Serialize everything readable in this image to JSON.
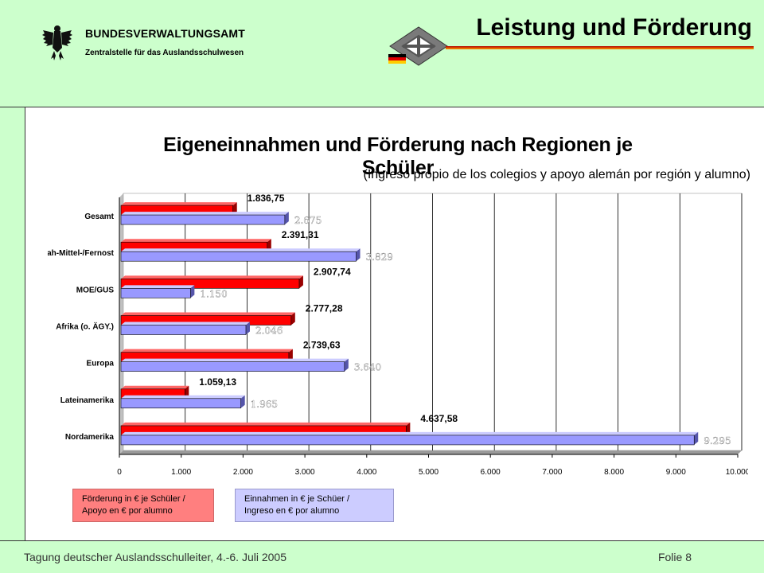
{
  "header": {
    "org_name": "BUNDESVERWALTUNGSAMT",
    "org_sub": "Zentralstelle für das Auslandsschulwesen",
    "slide_title": "Leistung und Förderung"
  },
  "footer": {
    "left": "Tagung deutscher Auslandsschulleiter, 4.-6. Juli 2005",
    "right": "Folie 8"
  },
  "colors": {
    "background": "#ccffcc",
    "foerderung": "#ff0000",
    "einnahmen": "#9999ff",
    "legend_red": "#ff7f7f",
    "legend_blue": "#ccccff"
  },
  "chart_data": {
    "type": "bar",
    "orientation": "horizontal",
    "title": "Eigeneinnahmen und Förderung nach Regionen je Schüler",
    "subtitle": "(Ingreso propio de los colegios y apoyo alemán por región y alumno)",
    "categories": [
      "Gesamt",
      "Nah-Mittel-/Fernost",
      "MOE/GUS",
      "Afrika (o. ÄGY.)",
      "Europa",
      "Lateinamerika",
      "Nordamerika"
    ],
    "series": [
      {
        "name": "Förderung in € je Schüler / Apoyo en € por alumno",
        "values": [
          1836.75,
          2391.31,
          2907.74,
          2777.28,
          2739.63,
          1059.13,
          4637.58
        ],
        "labels": [
          "1.836,75",
          "2.391,31",
          "2.907,74",
          "2.777,28",
          "2.739,63",
          "1.059,13",
          "4.637,58"
        ]
      },
      {
        "name": "Einnahmen in € je Schüer / Ingreso en € por alumno",
        "values": [
          2675,
          3829,
          1150,
          2046,
          3640,
          1965,
          9295
        ],
        "labels": [
          "2.675",
          "3.829",
          "1.150",
          "2.046",
          "3.640",
          "1.965",
          "9.295"
        ]
      }
    ],
    "xlim": [
      0,
      10000
    ],
    "ticks": [
      0,
      1000,
      2000,
      3000,
      4000,
      5000,
      6000,
      7000,
      8000,
      9000,
      10000
    ],
    "tick_labels": [
      "0",
      "1.000",
      "2.000",
      "3.000",
      "4.000",
      "5.000",
      "6.000",
      "7.000",
      "8.000",
      "9.000",
      "10.000"
    ],
    "grid": true,
    "legend": [
      "Förderung in € je Schüler / Apoyo en € por alumno",
      "Einnahmen in € je Schüer / Ingreso en € por alumno"
    ]
  }
}
